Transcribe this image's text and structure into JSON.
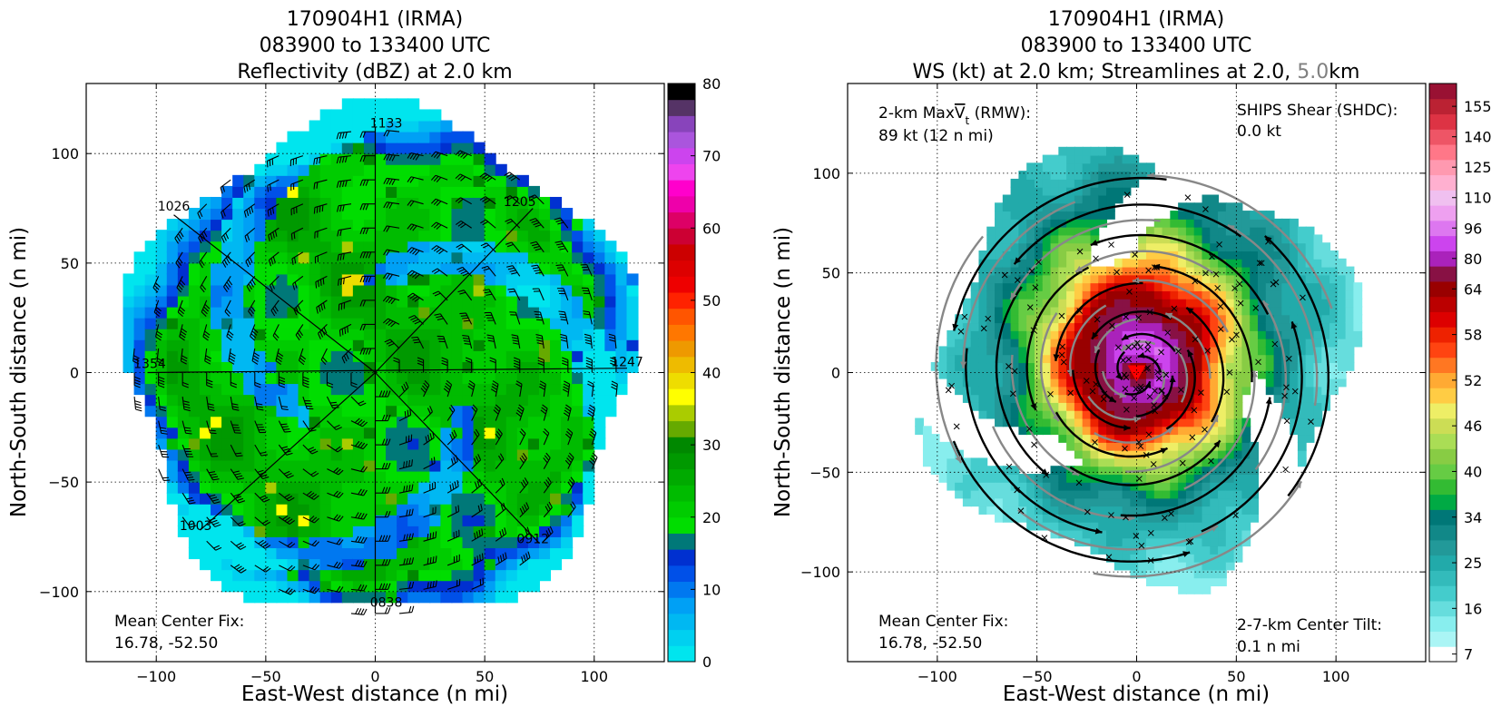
{
  "chart_data": [
    {
      "type": "heatmap",
      "title_lines": [
        "170904H1 (IRMA)",
        "083900 to 133400 UTC",
        "Reflectivity (dBZ) at 2.0 km"
      ],
      "xlabel": "East-West distance (n mi)",
      "ylabel": "North-South distance (n mi)",
      "xlim": [
        -132,
        132
      ],
      "ylim": [
        -132,
        132
      ],
      "xticks": [
        -100,
        -50,
        0,
        50,
        100
      ],
      "yticks": [
        -100,
        -50,
        0,
        50,
        100
      ],
      "grid": true,
      "colorbar": {
        "min": 0,
        "max": 80,
        "ticks": [
          0,
          10,
          20,
          30,
          40,
          50,
          60,
          70,
          80
        ],
        "colors": [
          "#00e5ee",
          "#00d0f0",
          "#00b8f2",
          "#00a0f5",
          "#0078f0",
          "#0050e8",
          "#0030d0",
          "#007878",
          "#00dd00",
          "#00cc00",
          "#00bb00",
          "#00aa00",
          "#009900",
          "#008800",
          "#66aa00",
          "#aacc00",
          "#ffff00",
          "#eedd00",
          "#eebb00",
          "#ee9900",
          "#ff7700",
          "#ff5500",
          "#ff2200",
          "#ee0000",
          "#dd0000",
          "#cc0000",
          "#cc0033",
          "#dd0066",
          "#ee00aa",
          "#ff00cc",
          "#ee44ee",
          "#cc44ee",
          "#aa55dd",
          "#8844bb",
          "#553366",
          "#000000"
        ]
      },
      "annotation": [
        "Mean Center Fix:",
        "16.78, -52.50"
      ],
      "leg_labels": [
        {
          "text": "1133",
          "x": 5,
          "y": 112
        },
        {
          "text": "1026",
          "x": -92,
          "y": 74
        },
        {
          "text": "1205",
          "x": 66,
          "y": 76
        },
        {
          "text": "1354",
          "x": -103,
          "y": 2
        },
        {
          "text": "1247",
          "x": 115,
          "y": 3
        },
        {
          "text": "1003",
          "x": -82,
          "y": -72
        },
        {
          "text": "0912",
          "x": 72,
          "y": -78
        },
        {
          "text": "0838",
          "x": 5,
          "y": -107
        }
      ]
    },
    {
      "type": "heatmap",
      "title_lines": [
        "170904H1 (IRMA)",
        "083900 to 133400 UTC"
      ],
      "title_line3": {
        "prefix": "WS (kt) at 2.0 km; Streamlines at 2.0, ",
        "highlight": "5.0",
        "suffix": "km",
        "highlight_color": "#808080"
      },
      "xlabel": "East-West distance (n mi)",
      "ylabel": "North-South distance (n mi)",
      "xlim": [
        -145,
        145
      ],
      "ylim": [
        -145,
        145
      ],
      "xticks": [
        -100,
        -50,
        0,
        50,
        100
      ],
      "yticks": [
        -100,
        -50,
        0,
        50,
        100
      ],
      "grid": true,
      "colorbar": {
        "ticks": [
          7,
          16,
          25,
          34,
          40,
          46,
          52,
          58,
          64,
          80,
          96,
          110,
          125,
          140,
          155
        ],
        "levels": [
          7,
          10,
          13,
          16,
          19,
          22,
          25,
          28,
          31,
          34,
          36,
          38,
          40,
          42,
          44,
          46,
          48,
          50,
          52,
          54,
          56,
          58,
          60,
          62,
          64,
          72,
          80,
          88,
          96,
          103,
          110,
          117,
          125,
          132,
          140,
          147,
          155,
          162
        ],
        "colors": [
          "#ffffff",
          "#aaf5f5",
          "#88eeee",
          "#66dddd",
          "#44cccc",
          "#33bbbb",
          "#22aaaa",
          "#229999",
          "#118888",
          "#007777",
          "#00aa44",
          "#33bb33",
          "#66cc44",
          "#88cc44",
          "#aadd55",
          "#ccdd55",
          "#eeee66",
          "#ffcc44",
          "#ffaa33",
          "#ff7722",
          "#ff4411",
          "#ee2200",
          "#dd0000",
          "#bb0000",
          "#990000",
          "#881144",
          "#aa22bb",
          "#cc44ee",
          "#dd77f0",
          "#eea0f0",
          "#f0c0f0",
          "#ffb0d0",
          "#ff99b0",
          "#ff7788",
          "#ee5566",
          "#dd3344",
          "#bb2233",
          "#991133"
        ]
      },
      "annotation_left": {
        "line1_prefix": "2-km Max",
        "line1_sym": "V",
        "line1_sub": "t",
        "line1_suffix": " (RMW):",
        "line2": "89 kt (12 n mi)"
      },
      "annotation_shear": [
        "SHIPS Shear (SHDC):",
        "0.0 kt"
      ],
      "annotation_center": [
        "Mean Center Fix:",
        "16.78, -52.50"
      ],
      "annotation_tilt": [
        "2-7-km Center Tilt:",
        "0.1 n mi"
      ],
      "shear_color": "#008800",
      "tilt_color": "#ff0000",
      "center_marker_color": "#ff0000"
    }
  ]
}
